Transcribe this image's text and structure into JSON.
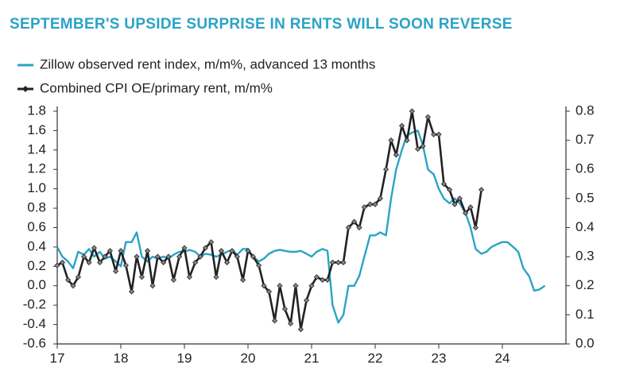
{
  "chart_data": {
    "type": "line",
    "title": "SEPTEMBER'S UPSIDE SURPRISE IN RENTS WILL SOON REVERSE",
    "x": [
      17,
      17.08,
      17.17,
      17.25,
      17.33,
      17.42,
      17.5,
      17.58,
      17.67,
      17.75,
      17.83,
      17.92,
      18,
      18.08,
      18.17,
      18.25,
      18.33,
      18.42,
      18.5,
      18.58,
      18.67,
      18.75,
      18.83,
      18.92,
      19,
      19.08,
      19.17,
      19.25,
      19.33,
      19.42,
      19.5,
      19.58,
      19.67,
      19.75,
      19.83,
      19.92,
      20,
      20.08,
      20.17,
      20.25,
      20.33,
      20.42,
      20.5,
      20.58,
      20.67,
      20.75,
      20.83,
      20.92,
      21,
      21.08,
      21.17,
      21.25,
      21.33,
      21.42,
      21.5,
      21.58,
      21.67,
      21.75,
      21.83,
      21.92,
      22,
      22.08,
      22.17,
      22.25,
      22.33,
      22.42,
      22.5,
      22.58,
      22.67,
      22.75,
      22.83,
      22.92,
      23,
      23.08,
      23.17,
      23.25,
      23.33,
      23.42,
      23.5,
      23.58,
      23.67,
      23.75,
      23.83,
      23.92,
      24,
      24.08,
      24.17,
      24.25,
      24.33,
      24.42,
      24.5,
      24.58,
      24.67
    ],
    "series": [
      {
        "name": "Zillow observed rent index, m/m%, advanced 13 months",
        "color": "#2ba3c6",
        "axis": "y",
        "values": [
          0.4,
          0.3,
          0.25,
          0.18,
          0.35,
          0.32,
          0.38,
          0.3,
          0.35,
          0.28,
          0.3,
          0.25,
          0.2,
          0.45,
          0.45,
          0.55,
          0.3,
          0.25,
          0.3,
          0.28,
          0.3,
          0.28,
          0.32,
          0.35,
          0.35,
          0.37,
          0.35,
          0.3,
          0.33,
          0.32,
          0.3,
          0.32,
          0.35,
          0.37,
          0.32,
          0.38,
          0.38,
          0.3,
          0.25,
          0.28,
          0.33,
          0.36,
          0.37,
          0.36,
          0.35,
          0.35,
          0.36,
          0.33,
          0.3,
          0.35,
          0.38,
          0.36,
          -0.2,
          -0.38,
          -0.3,
          0.0,
          0.0,
          0.1,
          0.3,
          0.52,
          0.52,
          0.55,
          0.52,
          0.9,
          1.2,
          1.4,
          1.55,
          1.58,
          1.6,
          1.45,
          1.2,
          1.15,
          1.0,
          0.9,
          0.85,
          0.9,
          0.85,
          0.75,
          0.6,
          0.38,
          0.33,
          0.35,
          0.4,
          0.43,
          0.45,
          0.45,
          0.4,
          0.35,
          0.18,
          0.1,
          -0.05,
          -0.04,
          0.0
        ]
      },
      {
        "name": "Combined CPI OE/primary rent, m/m%",
        "color": "#222222",
        "axis": "y2",
        "marker": "diamond",
        "values": [
          0.27,
          0.28,
          0.22,
          0.2,
          0.23,
          0.3,
          0.28,
          0.33,
          0.28,
          0.3,
          0.32,
          0.25,
          0.32,
          0.27,
          0.18,
          0.3,
          0.23,
          0.32,
          0.2,
          0.3,
          0.28,
          0.3,
          0.22,
          0.3,
          0.33,
          0.23,
          0.28,
          0.3,
          0.33,
          0.35,
          0.23,
          0.32,
          0.28,
          0.32,
          0.3,
          0.22,
          0.32,
          0.3,
          0.27,
          0.2,
          0.18,
          0.08,
          0.2,
          0.12,
          0.07,
          0.2,
          0.05,
          0.15,
          0.2,
          0.23,
          0.22,
          0.22,
          0.28,
          0.28,
          0.28,
          0.4,
          0.42,
          0.4,
          0.47,
          0.48,
          0.48,
          0.5,
          0.6,
          0.7,
          0.65,
          0.75,
          0.7,
          0.8,
          0.67,
          0.68,
          0.78,
          0.72,
          0.72,
          0.55,
          0.53,
          0.48,
          0.5,
          0.45,
          0.47,
          0.4,
          0.53,
          null,
          null,
          null,
          null,
          null,
          null,
          null,
          null,
          null,
          null,
          null,
          null
        ]
      }
    ],
    "xlim": [
      17,
      25
    ],
    "xticks": [
      17,
      18,
      19,
      20,
      21,
      22,
      23,
      24
    ],
    "ylim": [
      -0.6,
      1.8
    ],
    "yticks": [
      -0.6,
      -0.4,
      -0.2,
      {
        "value": 0,
        "label": "0.0"
      },
      0.2,
      0.4,
      0.6,
      0.8,
      {
        "value": 1,
        "label": "1.0"
      },
      1.2,
      1.4,
      1.6,
      1.8
    ],
    "y2lim": [
      0,
      0.8
    ],
    "y2ticks": [
      {
        "value": 0,
        "label": "0.0"
      },
      0.1,
      0.2,
      0.3,
      0.4,
      0.5,
      0.6,
      0.7,
      0.8
    ],
    "grid": false,
    "legend": "top-left"
  }
}
